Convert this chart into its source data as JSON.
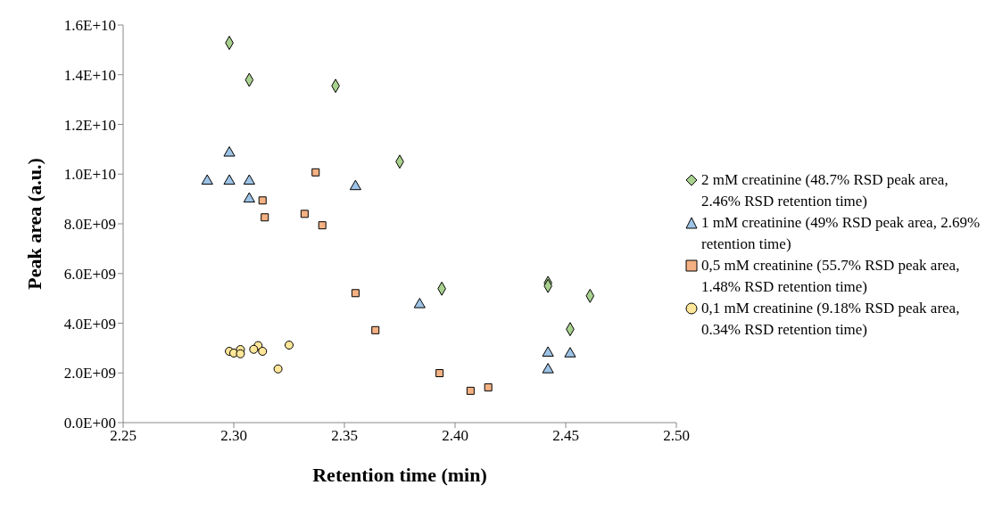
{
  "chart_data": {
    "type": "scatter",
    "xlabel": "Retention time (min)",
    "ylabel": "Peak area (a.u.)",
    "xlim": [
      2.25,
      2.5
    ],
    "xticks": [
      {
        "value": 2.25,
        "label": "2.25"
      },
      {
        "value": 2.3,
        "label": "2.30"
      },
      {
        "value": 2.35,
        "label": "2.35"
      },
      {
        "value": 2.4,
        "label": "2.40"
      },
      {
        "value": 2.45,
        "label": "2.45"
      },
      {
        "value": 2.5,
        "label": "2.50"
      }
    ],
    "ylim": [
      0,
      16000000000
    ],
    "yticks": [
      {
        "value": 0,
        "label": "0.0E+00"
      },
      {
        "value": 2000000000,
        "label": "2.0E+09"
      },
      {
        "value": 4000000000,
        "label": "4.0E+09"
      },
      {
        "value": 6000000000,
        "label": "6.0E+09"
      },
      {
        "value": 8000000000,
        "label": "8.0E+09"
      },
      {
        "value": 10000000000,
        "label": "1.0E+10"
      },
      {
        "value": 12000000000,
        "label": "1.2E+10"
      },
      {
        "value": 14000000000,
        "label": "1.4E+10"
      },
      {
        "value": 16000000000,
        "label": "1.6E+10"
      }
    ],
    "grid": false,
    "legend": "right",
    "series": [
      {
        "name": "2 mM creatinine (48.7% RSD peak area, 2.46% RSD retention time)",
        "color": "#a9d18e",
        "marker": "diamond",
        "x": [
          2.298,
          2.307,
          2.346,
          2.375,
          2.394,
          2.442,
          2.442,
          2.461,
          2.452
        ],
        "values": [
          15280000000,
          13790000000,
          13550000000,
          10500000000,
          5390000000,
          5620000000,
          5500000000,
          5100000000,
          3760000000
        ]
      },
      {
        "name": "1 mM creatinine (49% RSD peak area, 2.69% retention time)",
        "color": "#9dc3e6",
        "marker": "triangle",
        "x": [
          2.298,
          2.288,
          2.298,
          2.307,
          2.307,
          2.355,
          2.384,
          2.442,
          2.452,
          2.442
        ],
        "values": [
          10850000000,
          9720000000,
          9720000000,
          9720000000,
          9000000000,
          9500000000,
          4750000000,
          2800000000,
          2770000000,
          2130000000
        ]
      },
      {
        "name": "0,5 mM creatinine (55.7% RSD peak area, 1.48% RSD retention time)",
        "color": "#f4b183",
        "marker": "square",
        "x": [
          2.337,
          2.313,
          2.314,
          2.332,
          2.34,
          2.355,
          2.364,
          2.393,
          2.407,
          2.415
        ],
        "values": [
          10070000000,
          8940000000,
          8260000000,
          8400000000,
          7940000000,
          5210000000,
          3720000000,
          1990000000,
          1280000000,
          1420000000
        ]
      },
      {
        "name": "0,1 mM creatinine (9.18% RSD peak area, 0.34% RSD retention time)",
        "color": "#ffe699",
        "marker": "circle",
        "x": [
          2.298,
          2.3,
          2.303,
          2.303,
          2.311,
          2.309,
          2.313,
          2.32,
          2.325
        ],
        "values": [
          2870000000,
          2800000000,
          2940000000,
          2770000000,
          3100000000,
          2950000000,
          2870000000,
          2160000000,
          3120000000
        ]
      }
    ]
  }
}
